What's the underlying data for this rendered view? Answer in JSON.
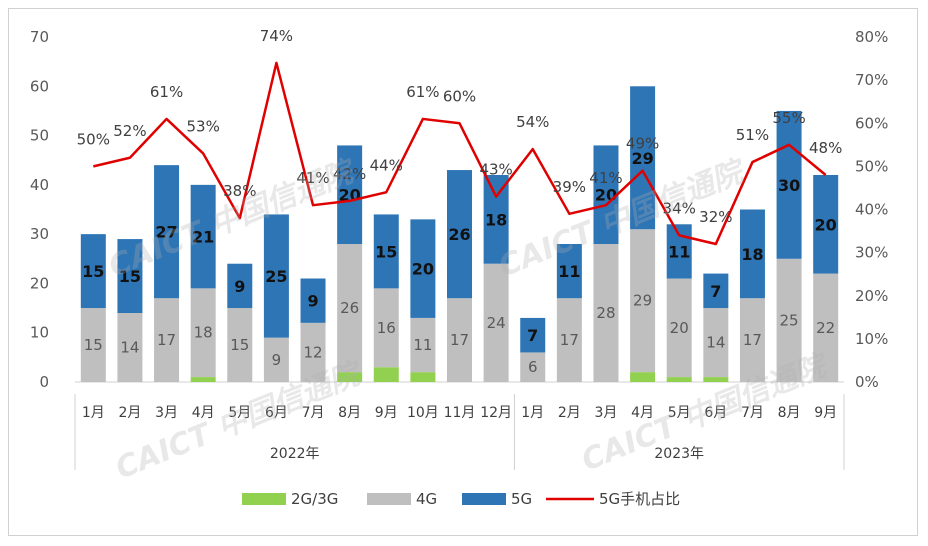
{
  "chart_data": {
    "type": "bar",
    "stacked": true,
    "title": "",
    "categories": [
      "1月",
      "2月",
      "3月",
      "4月",
      "5月",
      "6月",
      "7月",
      "8月",
      "9月",
      "10月",
      "11月",
      "12月",
      "1月",
      "2月",
      "3月",
      "4月",
      "5月",
      "6月",
      "7月",
      "8月",
      "9月"
    ],
    "groups": [
      {
        "label": "2022年",
        "count": 12
      },
      {
        "label": "2023年",
        "count": 9
      }
    ],
    "series": [
      {
        "name": "2G/3G",
        "color": "#92d050",
        "values": [
          0,
          0,
          0,
          1,
          0,
          0,
          0,
          2,
          3,
          2,
          0,
          0,
          0,
          0,
          0,
          2,
          1,
          1,
          0,
          0,
          0
        ]
      },
      {
        "name": "4G",
        "color": "#bfbfbf",
        "values": [
          15,
          14,
          17,
          18,
          15,
          9,
          12,
          26,
          16,
          11,
          17,
          24,
          6,
          17,
          28,
          29,
          20,
          14,
          17,
          25,
          22
        ]
      },
      {
        "name": "5G",
        "color": "#2e75b6",
        "values": [
          15,
          15,
          27,
          21,
          9,
          25,
          9,
          20,
          15,
          20,
          26,
          18,
          7,
          11,
          20,
          29,
          11,
          7,
          18,
          30,
          20
        ]
      }
    ],
    "line_series": {
      "name": "5G手机占比",
      "color": "#e00000",
      "axis": "right",
      "values": [
        50,
        52,
        61,
        53,
        38,
        74,
        41,
        42,
        44,
        61,
        60,
        43,
        54,
        39,
        41,
        49,
        34,
        32,
        51,
        55,
        48
      ],
      "labels": [
        "50%",
        "52%",
        "61%",
        "53%",
        "38%",
        "74%",
        "41%",
        "42%",
        "44%",
        "61%",
        "60%",
        "43%",
        "54%",
        "39%",
        "41%",
        "49%",
        "34%",
        "32%",
        "51%",
        "55%",
        "48%"
      ]
    },
    "y_left": {
      "min": 0,
      "max": 70,
      "step": 10,
      "ticks": [
        "0",
        "10",
        "20",
        "30",
        "40",
        "50",
        "60",
        "70"
      ]
    },
    "y_right": {
      "min": 0,
      "max": 80,
      "step": 10,
      "ticks": [
        "0%",
        "10%",
        "20%",
        "30%",
        "40%",
        "50%",
        "60%",
        "70%",
        "80%"
      ]
    },
    "legend": {
      "position": "bottom"
    },
    "grid": false
  },
  "watermark": "CAICT 中国信通院"
}
